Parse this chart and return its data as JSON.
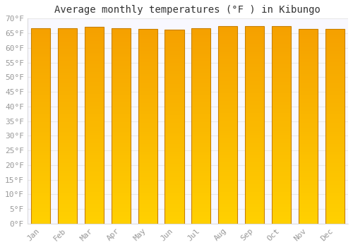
{
  "title": "Average monthly temperatures (°F ) in Kibungo",
  "months": [
    "Jan",
    "Feb",
    "Mar",
    "Apr",
    "May",
    "Jun",
    "Jul",
    "Aug",
    "Sep",
    "Oct",
    "Nov",
    "Dec"
  ],
  "values": [
    66.7,
    66.7,
    67.1,
    66.7,
    66.4,
    66.2,
    66.6,
    67.5,
    67.5,
    67.3,
    66.4,
    66.4
  ],
  "bar_color_bottom": "#FFD000",
  "bar_color_top": "#F5A000",
  "bar_edge_color": "#C88000",
  "ylim": [
    0,
    70
  ],
  "yticks": [
    0,
    5,
    10,
    15,
    20,
    25,
    30,
    35,
    40,
    45,
    50,
    55,
    60,
    65,
    70
  ],
  "ytick_labels": [
    "0°F",
    "5°F",
    "10°F",
    "15°F",
    "20°F",
    "25°F",
    "30°F",
    "35°F",
    "40°F",
    "45°F",
    "50°F",
    "55°F",
    "60°F",
    "65°F",
    "70°F"
  ],
  "background_color": "#ffffff",
  "plot_bg_color": "#f8f8ff",
  "grid_color": "#e8e8e8",
  "title_fontsize": 10,
  "tick_fontsize": 8,
  "font_family": "monospace"
}
